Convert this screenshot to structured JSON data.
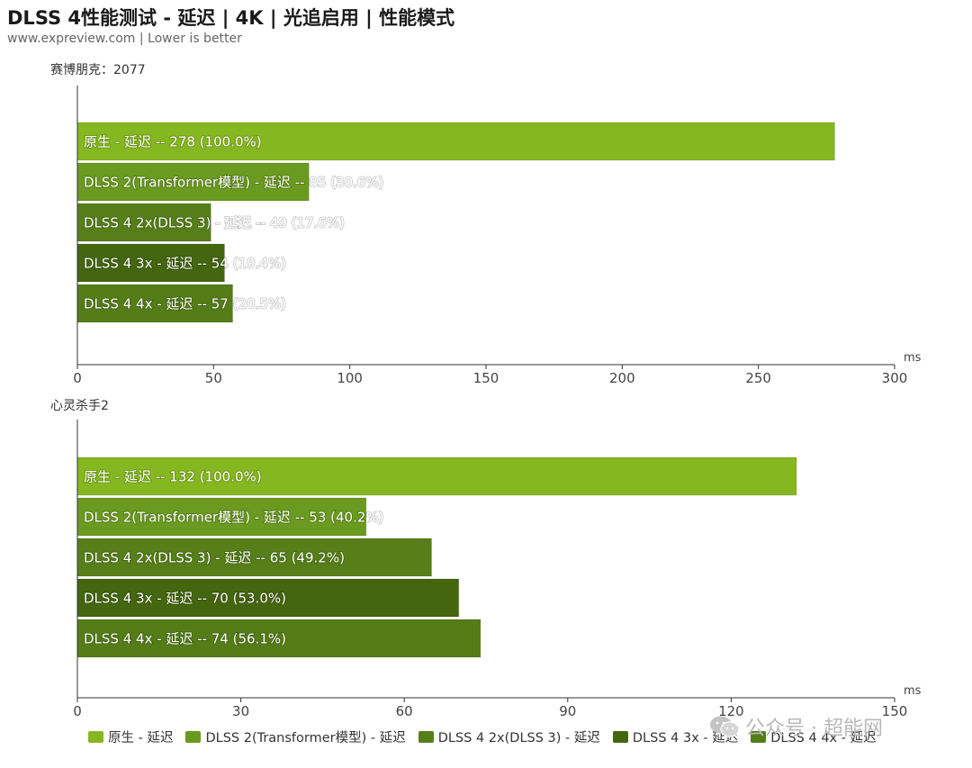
{
  "header": {
    "title": "DLSS 4性能测试 - 延迟 | 4K | 光追启用 | 性能模式",
    "subtitle": "www.expreview.com | Lower is better"
  },
  "watermark": {
    "text": "公众号 · 超能网"
  },
  "chart_data": [
    {
      "type": "bar",
      "orientation": "horizontal",
      "title": "赛博朋克：2077",
      "xlabel": "ms",
      "xlim": [
        0,
        300
      ],
      "ticks": [
        0,
        50,
        100,
        150,
        200,
        250,
        300
      ],
      "categories": [
        "原生 - 延迟",
        "DLSS 2(Transformer模型) - 延迟",
        "DLSS 4 2x(DLSS 3) - 延迟",
        "DLSS 4 3x - 延迟",
        "DLSS 4 4x - 延迟"
      ],
      "values": [
        278,
        85,
        49,
        54,
        57
      ],
      "bar_labels": [
        "原生 - 延迟  --  278 (100.0%)",
        "DLSS 2(Transformer模型) - 延迟  --  85 (30.6%)",
        "DLSS 4 2x(DLSS 3)  - 延迟  --  49 (17.6%)",
        "DLSS 4 3x  - 延迟  --  54 (19.4%)",
        "DLSS 4 4x  - 延迟  --  57 (20.5%)"
      ]
    },
    {
      "type": "bar",
      "orientation": "horizontal",
      "title": "心灵杀手2",
      "xlabel": "ms",
      "xlim": [
        0,
        150
      ],
      "ticks": [
        0,
        30,
        60,
        90,
        120,
        150
      ],
      "categories": [
        "原生 - 延迟",
        "DLSS 2(Transformer模型) - 延迟",
        "DLSS 4 2x(DLSS 3) - 延迟",
        "DLSS 4 3x - 延迟",
        "DLSS 4 4x - 延迟"
      ],
      "values": [
        132,
        53,
        65,
        70,
        74
      ],
      "bar_labels": [
        "原生 - 延迟  --  132 (100.0%)",
        "DLSS 2(Transformer模型) - 延迟  --  53 (40.2%)",
        "DLSS 4 2x(DLSS 3)  - 延迟  --  65 (49.2%)",
        "DLSS 4 3x  - 延迟  --  70 (53.0%)",
        "DLSS 4 4x  - 延迟  --  74 (56.1%)"
      ]
    }
  ],
  "legend": [
    {
      "label": "原生 - 延迟",
      "color": "#85b820"
    },
    {
      "label": "DLSS 2(Transformer模型) - 延迟",
      "color": "#6a9a1f"
    },
    {
      "label": "DLSS 4 2x(DLSS 3)  - 延迟",
      "color": "#567f19"
    },
    {
      "label": "DLSS 4 3x  - 延迟",
      "color": "#44660f"
    },
    {
      "label": "DLSS 4 4x  - 延迟",
      "color": "#547d18"
    }
  ]
}
